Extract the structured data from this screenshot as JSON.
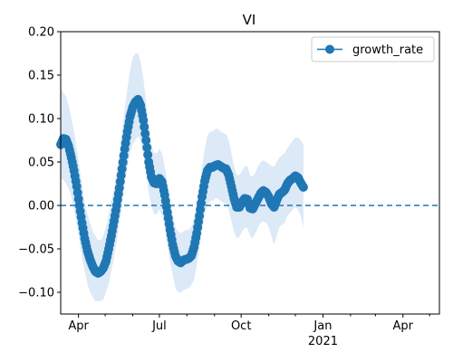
{
  "chart_data": {
    "type": "line",
    "title": "VI",
    "xlabel": "",
    "ylabel": "",
    "x_start": "2020-03-12",
    "x_end": "2021-05-12",
    "ylim": [
      -0.125,
      0.2
    ],
    "y_ticks": [
      -0.1,
      -0.05,
      0.0,
      0.05,
      0.1,
      0.15,
      0.2
    ],
    "y_tick_labels": [
      "−0.10",
      "−0.05",
      "0.00",
      "0.05",
      "0.10",
      "0.15",
      "0.20"
    ],
    "x_ticks": [
      {
        "date": "2020-04-01",
        "label": "Apr",
        "sublabel": ""
      },
      {
        "date": "2020-07-01",
        "label": "Jul",
        "sublabel": ""
      },
      {
        "date": "2020-10-01",
        "label": "Oct",
        "sublabel": ""
      },
      {
        "date": "2021-01-01",
        "label": "Jan",
        "sublabel": "2021"
      },
      {
        "date": "2021-04-01",
        "label": "Apr",
        "sublabel": ""
      }
    ],
    "x_minor_ticks": [
      "2020-05-01",
      "2020-06-01",
      "2020-08-01",
      "2020-09-01",
      "2020-11-01",
      "2020-12-01",
      "2021-02-01",
      "2021-03-01",
      "2021-05-01"
    ],
    "reference_line": {
      "y": 0.0,
      "style": "dashed",
      "color": "#1f77b4"
    },
    "legend": {
      "position": "top-right",
      "entries": [
        "growth_rate"
      ]
    },
    "grid": false,
    "series": [
      {
        "name": "growth_rate",
        "color": "#1f77b4",
        "marker": "circle",
        "band_color": "#dce9f6",
        "points": [
          {
            "date": "2020-03-12",
            "value": 0.07,
            "lower": 0.03,
            "upper": 0.135
          },
          {
            "date": "2020-03-15",
            "value": 0.077,
            "lower": 0.03,
            "upper": 0.13
          },
          {
            "date": "2020-03-18",
            "value": 0.076,
            "lower": 0.025,
            "upper": 0.125
          },
          {
            "date": "2020-03-21",
            "value": 0.068,
            "lower": 0.02,
            "upper": 0.115
          },
          {
            "date": "2020-03-24",
            "value": 0.055,
            "lower": 0.01,
            "upper": 0.1
          },
          {
            "date": "2020-03-27",
            "value": 0.04,
            "lower": -0.005,
            "upper": 0.085
          },
          {
            "date": "2020-03-30",
            "value": 0.022,
            "lower": -0.02,
            "upper": 0.065
          },
          {
            "date": "2020-04-02",
            "value": 0.0,
            "lower": -0.04,
            "upper": 0.045
          },
          {
            "date": "2020-04-05",
            "value": -0.02,
            "lower": -0.06,
            "upper": 0.025
          },
          {
            "date": "2020-04-08",
            "value": -0.038,
            "lower": -0.075,
            "upper": 0.005
          },
          {
            "date": "2020-04-11",
            "value": -0.052,
            "lower": -0.09,
            "upper": -0.01
          },
          {
            "date": "2020-04-14",
            "value": -0.062,
            "lower": -0.1,
            "upper": -0.02
          },
          {
            "date": "2020-04-17",
            "value": -0.07,
            "lower": -0.105,
            "upper": -0.03
          },
          {
            "date": "2020-04-20",
            "value": -0.076,
            "lower": -0.11,
            "upper": -0.035
          },
          {
            "date": "2020-04-23",
            "value": -0.078,
            "lower": -0.11,
            "upper": -0.04
          },
          {
            "date": "2020-04-26",
            "value": -0.076,
            "lower": -0.11,
            "upper": -0.04
          },
          {
            "date": "2020-04-29",
            "value": -0.072,
            "lower": -0.108,
            "upper": -0.035
          },
          {
            "date": "2020-05-02",
            "value": -0.064,
            "lower": -0.1,
            "upper": -0.025
          },
          {
            "date": "2020-05-05",
            "value": -0.05,
            "lower": -0.09,
            "upper": -0.01
          },
          {
            "date": "2020-05-08",
            "value": -0.035,
            "lower": -0.075,
            "upper": 0.005
          },
          {
            "date": "2020-05-11",
            "value": -0.018,
            "lower": -0.06,
            "upper": 0.02
          },
          {
            "date": "2020-05-14",
            "value": 0.0,
            "lower": -0.04,
            "upper": 0.04
          },
          {
            "date": "2020-05-17",
            "value": 0.02,
            "lower": -0.02,
            "upper": 0.06
          },
          {
            "date": "2020-05-20",
            "value": 0.042,
            "lower": 0.0,
            "upper": 0.085
          },
          {
            "date": "2020-05-23",
            "value": 0.065,
            "lower": 0.025,
            "upper": 0.11
          },
          {
            "date": "2020-05-26",
            "value": 0.085,
            "lower": 0.045,
            "upper": 0.135
          },
          {
            "date": "2020-05-29",
            "value": 0.102,
            "lower": 0.06,
            "upper": 0.155
          },
          {
            "date": "2020-06-01",
            "value": 0.113,
            "lower": 0.07,
            "upper": 0.17
          },
          {
            "date": "2020-06-04",
            "value": 0.119,
            "lower": 0.075,
            "upper": 0.175
          },
          {
            "date": "2020-06-07",
            "value": 0.122,
            "lower": 0.08,
            "upper": 0.175
          },
          {
            "date": "2020-06-10",
            "value": 0.115,
            "lower": 0.075,
            "upper": 0.165
          },
          {
            "date": "2020-06-13",
            "value": 0.098,
            "lower": 0.06,
            "upper": 0.145
          },
          {
            "date": "2020-06-16",
            "value": 0.075,
            "lower": 0.04,
            "upper": 0.12
          },
          {
            "date": "2020-06-19",
            "value": 0.05,
            "lower": 0.015,
            "upper": 0.09
          },
          {
            "date": "2020-06-22",
            "value": 0.033,
            "lower": 0.0,
            "upper": 0.07
          },
          {
            "date": "2020-06-25",
            "value": 0.026,
            "lower": -0.01,
            "upper": 0.06
          },
          {
            "date": "2020-06-28",
            "value": 0.025,
            "lower": -0.01,
            "upper": 0.06
          },
          {
            "date": "2020-07-01",
            "value": 0.031,
            "lower": -0.005,
            "upper": 0.065
          },
          {
            "date": "2020-07-04",
            "value": 0.027,
            "lower": -0.01,
            "upper": 0.06
          },
          {
            "date": "2020-07-07",
            "value": 0.012,
            "lower": -0.025,
            "upper": 0.045
          },
          {
            "date": "2020-07-10",
            "value": -0.008,
            "lower": -0.045,
            "upper": 0.025
          },
          {
            "date": "2020-07-13",
            "value": -0.028,
            "lower": -0.065,
            "upper": 0.005
          },
          {
            "date": "2020-07-16",
            "value": -0.045,
            "lower": -0.08,
            "upper": -0.01
          },
          {
            "date": "2020-07-19",
            "value": -0.058,
            "lower": -0.095,
            "upper": -0.025
          },
          {
            "date": "2020-07-22",
            "value": -0.064,
            "lower": -0.1,
            "upper": -0.03
          },
          {
            "date": "2020-07-25",
            "value": -0.066,
            "lower": -0.1,
            "upper": -0.032
          },
          {
            "date": "2020-07-28",
            "value": -0.063,
            "lower": -0.098,
            "upper": -0.03
          },
          {
            "date": "2020-07-31",
            "value": -0.062,
            "lower": -0.096,
            "upper": -0.028
          },
          {
            "date": "2020-08-03",
            "value": -0.061,
            "lower": -0.095,
            "upper": -0.028
          },
          {
            "date": "2020-08-06",
            "value": -0.058,
            "lower": -0.092,
            "upper": -0.025
          },
          {
            "date": "2020-08-09",
            "value": -0.048,
            "lower": -0.085,
            "upper": -0.015
          },
          {
            "date": "2020-08-12",
            "value": -0.032,
            "lower": -0.07,
            "upper": 0.0
          },
          {
            "date": "2020-08-15",
            "value": -0.012,
            "lower": -0.05,
            "upper": 0.02
          },
          {
            "date": "2020-08-18",
            "value": 0.01,
            "lower": -0.03,
            "upper": 0.045
          },
          {
            "date": "2020-08-21",
            "value": 0.028,
            "lower": -0.01,
            "upper": 0.065
          },
          {
            "date": "2020-08-24",
            "value": 0.04,
            "lower": 0.0,
            "upper": 0.08
          },
          {
            "date": "2020-08-27",
            "value": 0.044,
            "lower": 0.005,
            "upper": 0.085
          },
          {
            "date": "2020-08-30",
            "value": 0.044,
            "lower": 0.005,
            "upper": 0.085
          },
          {
            "date": "2020-09-02",
            "value": 0.046,
            "lower": 0.008,
            "upper": 0.088
          },
          {
            "date": "2020-09-05",
            "value": 0.047,
            "lower": 0.008,
            "upper": 0.088
          },
          {
            "date": "2020-09-08",
            "value": 0.045,
            "lower": 0.005,
            "upper": 0.085
          },
          {
            "date": "2020-09-11",
            "value": 0.043,
            "lower": 0.003,
            "upper": 0.083
          },
          {
            "date": "2020-09-14",
            "value": 0.042,
            "lower": 0.002,
            "upper": 0.082
          },
          {
            "date": "2020-09-17",
            "value": 0.035,
            "lower": -0.005,
            "upper": 0.075
          },
          {
            "date": "2020-09-20",
            "value": 0.022,
            "lower": -0.018,
            "upper": 0.06
          },
          {
            "date": "2020-09-23",
            "value": 0.008,
            "lower": -0.03,
            "upper": 0.045
          },
          {
            "date": "2020-09-26",
            "value": -0.002,
            "lower": -0.038,
            "upper": 0.035
          },
          {
            "date": "2020-09-29",
            "value": -0.002,
            "lower": -0.036,
            "upper": 0.035
          },
          {
            "date": "2020-10-02",
            "value": 0.004,
            "lower": -0.03,
            "upper": 0.04
          },
          {
            "date": "2020-10-05",
            "value": 0.008,
            "lower": -0.026,
            "upper": 0.045
          },
          {
            "date": "2020-10-08",
            "value": 0.007,
            "lower": -0.026,
            "upper": 0.045
          },
          {
            "date": "2020-10-11",
            "value": -0.003,
            "lower": -0.035,
            "upper": 0.035
          },
          {
            "date": "2020-10-14",
            "value": -0.004,
            "lower": -0.038,
            "upper": 0.033
          },
          {
            "date": "2020-10-17",
            "value": 0.002,
            "lower": -0.032,
            "upper": 0.038
          },
          {
            "date": "2020-10-20",
            "value": 0.008,
            "lower": -0.025,
            "upper": 0.045
          },
          {
            "date": "2020-10-23",
            "value": 0.014,
            "lower": -0.02,
            "upper": 0.05
          },
          {
            "date": "2020-10-26",
            "value": 0.017,
            "lower": -0.018,
            "upper": 0.052
          },
          {
            "date": "2020-10-29",
            "value": 0.015,
            "lower": -0.02,
            "upper": 0.05
          },
          {
            "date": "2020-11-01",
            "value": 0.01,
            "lower": -0.025,
            "upper": 0.048
          },
          {
            "date": "2020-11-04",
            "value": 0.002,
            "lower": -0.035,
            "upper": 0.045
          },
          {
            "date": "2020-11-07",
            "value": -0.002,
            "lower": -0.045,
            "upper": 0.045
          },
          {
            "date": "2020-11-10",
            "value": 0.006,
            "lower": -0.035,
            "upper": 0.05
          },
          {
            "date": "2020-11-13",
            "value": 0.013,
            "lower": -0.025,
            "upper": 0.055
          },
          {
            "date": "2020-11-16",
            "value": 0.015,
            "lower": -0.022,
            "upper": 0.058
          },
          {
            "date": "2020-11-19",
            "value": 0.018,
            "lower": -0.02,
            "upper": 0.06
          },
          {
            "date": "2020-11-22",
            "value": 0.025,
            "lower": -0.012,
            "upper": 0.066
          },
          {
            "date": "2020-11-25",
            "value": 0.029,
            "lower": -0.008,
            "upper": 0.07
          },
          {
            "date": "2020-11-28",
            "value": 0.031,
            "lower": -0.005,
            "upper": 0.075
          },
          {
            "date": "2020-12-01",
            "value": 0.034,
            "lower": -0.002,
            "upper": 0.078
          },
          {
            "date": "2020-12-04",
            "value": 0.032,
            "lower": -0.005,
            "upper": 0.078
          },
          {
            "date": "2020-12-07",
            "value": 0.026,
            "lower": -0.012,
            "upper": 0.075
          },
          {
            "date": "2020-12-10",
            "value": 0.021,
            "lower": -0.025,
            "upper": 0.07
          }
        ]
      }
    ]
  }
}
